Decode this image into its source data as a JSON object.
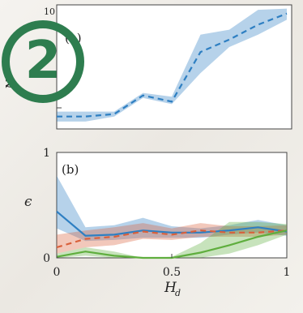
{
  "badge": {
    "text": "2",
    "color": "#2e7d4f"
  },
  "colors": {
    "blue": "#2e7fc2",
    "blue_band": "#a9c6e6",
    "orange": "#d9603b",
    "green": "#5fae3e"
  },
  "chart_data": [
    {
      "type": "line",
      "panel_label": "(a)",
      "ylabel_fragment": "N",
      "ytick_top_fragment": "10",
      "x": [
        0,
        0.125,
        0.25,
        0.375,
        0.5,
        0.625,
        0.75,
        0.875,
        1
      ],
      "xlim": [
        0,
        1
      ],
      "series": [
        {
          "color": "#2e7fc2",
          "style": "dashed",
          "values": [
            0.1,
            0.1,
            0.12,
            0.27,
            0.22,
            0.62,
            0.72,
            0.84,
            0.93
          ],
          "band_low": [
            0.06,
            0.06,
            0.1,
            0.25,
            0.2,
            0.45,
            0.66,
            0.76,
            0.88
          ],
          "band_high": [
            0.14,
            0.14,
            0.14,
            0.29,
            0.26,
            0.76,
            0.8,
            0.96,
            0.97
          ]
        }
      ]
    },
    {
      "type": "line",
      "panel_label": "(b)",
      "ylabel": "ϵ",
      "xlabel": "H",
      "xlabel_sub": "d",
      "xticks": [
        "0",
        "0.5",
        "1"
      ],
      "yticks": [
        "0",
        "1"
      ],
      "xlim": [
        0,
        1
      ],
      "ylim": [
        0,
        1
      ],
      "x": [
        0,
        0.125,
        0.25,
        0.375,
        0.5,
        0.625,
        0.75,
        0.875,
        1
      ],
      "series": [
        {
          "color": "#2e7fc2",
          "style": "solid",
          "values": [
            0.44,
            0.21,
            0.22,
            0.26,
            0.24,
            0.24,
            0.26,
            0.29,
            0.25
          ],
          "band_low": [
            0.28,
            0.16,
            0.17,
            0.19,
            0.19,
            0.19,
            0.22,
            0.24,
            0.21
          ],
          "band_high": [
            0.78,
            0.29,
            0.31,
            0.38,
            0.3,
            0.28,
            0.31,
            0.36,
            0.31
          ]
        },
        {
          "color": "#d9603b",
          "style": "dashed",
          "values": [
            0.1,
            0.18,
            0.2,
            0.25,
            0.22,
            0.26,
            0.24,
            0.24,
            0.26
          ],
          "band_low": [
            0.04,
            0.1,
            0.12,
            0.18,
            0.17,
            0.2,
            0.2,
            0.2,
            0.22
          ],
          "band_high": [
            0.22,
            0.26,
            0.29,
            0.33,
            0.28,
            0.33,
            0.3,
            0.3,
            0.31
          ]
        },
        {
          "color": "#5fae3e",
          "style": "solid",
          "values": [
            0.01,
            0.06,
            0.02,
            0.0,
            0.0,
            0.05,
            0.12,
            0.2,
            0.26
          ],
          "band_low": [
            0.0,
            0.02,
            0.0,
            0.0,
            0.0,
            0.0,
            0.04,
            0.12,
            0.22
          ],
          "band_high": [
            0.04,
            0.1,
            0.06,
            0.0,
            0.01,
            0.14,
            0.34,
            0.34,
            0.32
          ]
        }
      ]
    }
  ]
}
